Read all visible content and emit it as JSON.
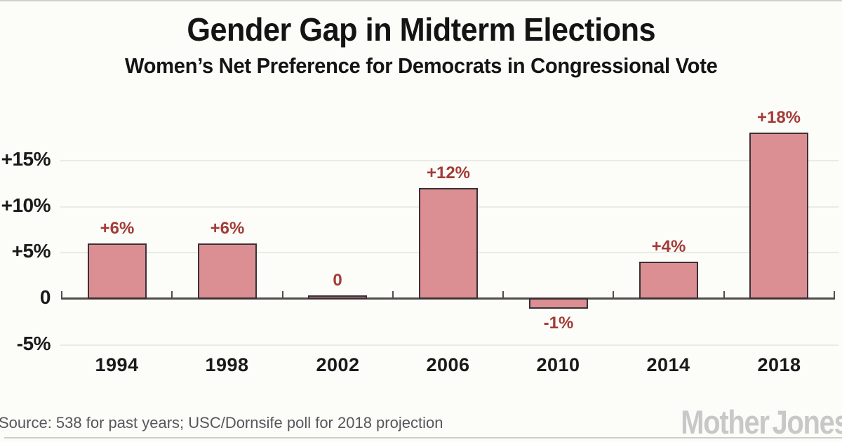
{
  "header": {
    "title": "Gender Gap in Midterm Elections",
    "subtitle": "Women’s Net Preference for Democrats in Congressional Vote"
  },
  "chart_data": {
    "type": "bar",
    "title": "Gender Gap in Midterm Elections",
    "subtitle": "Women’s Net Preference for Democrats in Congressional Vote",
    "categories": [
      "1994",
      "1998",
      "2002",
      "2006",
      "2010",
      "2014",
      "2018"
    ],
    "values": [
      6,
      6,
      0,
      12,
      -1,
      4,
      18
    ],
    "bar_labels": [
      "+6%",
      "+6%",
      "0",
      "+12%",
      "-1%",
      "+4%",
      "+18%"
    ],
    "y_ticks": [
      {
        "label": "+15%",
        "value": 15
      },
      {
        "label": "+10%",
        "value": 10
      },
      {
        "label": "+5%",
        "value": 5
      },
      {
        "label": "0",
        "value": 0
      },
      {
        "label": "-5%",
        "value": -5
      }
    ],
    "ylim": [
      -5,
      19
    ],
    "xlabel": "",
    "ylabel": "",
    "grid": "horizontal",
    "legend": "none",
    "bar_color": "#db8f93",
    "bar_border_color": "#3b3134",
    "value_label_color": "#a33b36",
    "axis_color": "#514d4b",
    "gridline_color": "#e9ebe4"
  },
  "footer": {
    "source": "Source: 538 for past years; USC/Dornsife poll for 2018 projection",
    "brand": "Mother Jones"
  }
}
